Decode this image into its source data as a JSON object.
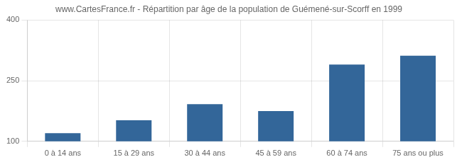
{
  "chart_data": {
    "type": "bar",
    "title": "www.CartesFrance.fr - Répartition par âge de la population de Guémené-sur-Scorff en 1999",
    "categories": [
      "0 à 14 ans",
      "15 à 29 ans",
      "30 à 44 ans",
      "45 à 59 ans",
      "60 à 74 ans",
      "75 ans ou plus"
    ],
    "values": [
      120,
      152,
      192,
      175,
      290,
      312
    ],
    "color": "#336699",
    "ylim": [
      100,
      400
    ],
    "yticks": [
      100,
      250,
      400
    ],
    "grid": true
  }
}
